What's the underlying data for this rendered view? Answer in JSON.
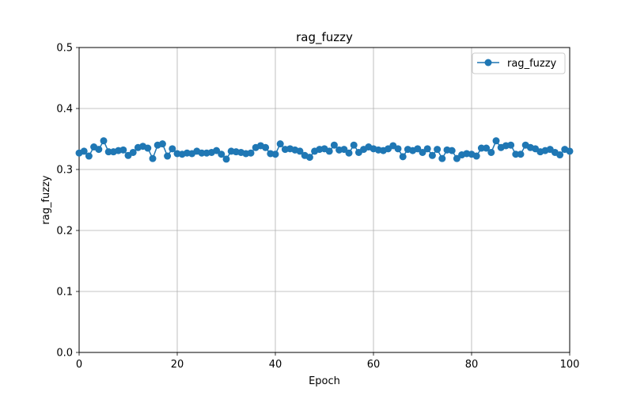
{
  "chart_data": {
    "type": "line",
    "title": "rag_fuzzy",
    "xlabel": "Epoch",
    "ylabel": "rag_fuzzy",
    "xlim": [
      0,
      100
    ],
    "ylim": [
      0,
      0.5
    ],
    "xticks": [
      "0",
      "20",
      "40",
      "60",
      "80",
      "100"
    ],
    "yticks": [
      "0.0",
      "0.1",
      "0.2",
      "0.3",
      "0.4",
      "0.5"
    ],
    "grid": true,
    "legend_position": "top-right",
    "series": [
      {
        "name": "rag_fuzzy",
        "color": "#1f77b4",
        "marker": "circle",
        "x": [
          0,
          1,
          2,
          3,
          4,
          5,
          6,
          7,
          8,
          9,
          10,
          11,
          12,
          13,
          14,
          15,
          16,
          17,
          18,
          19,
          20,
          21,
          22,
          23,
          24,
          25,
          26,
          27,
          28,
          29,
          30,
          31,
          32,
          33,
          34,
          35,
          36,
          37,
          38,
          39,
          40,
          41,
          42,
          43,
          44,
          45,
          46,
          47,
          48,
          49,
          50,
          51,
          52,
          53,
          54,
          55,
          56,
          57,
          58,
          59,
          60,
          61,
          62,
          63,
          64,
          65,
          66,
          67,
          68,
          69,
          70,
          71,
          72,
          73,
          74,
          75,
          76,
          77,
          78,
          79,
          80,
          81,
          82,
          83,
          84,
          85,
          86,
          87,
          88,
          89,
          90,
          91,
          92,
          93,
          94,
          95,
          96,
          97,
          98,
          99,
          100
        ],
        "values": [
          0.327,
          0.33,
          0.322,
          0.337,
          0.333,
          0.347,
          0.329,
          0.329,
          0.331,
          0.332,
          0.323,
          0.328,
          0.336,
          0.338,
          0.335,
          0.318,
          0.34,
          0.342,
          0.322,
          0.334,
          0.326,
          0.325,
          0.327,
          0.326,
          0.33,
          0.327,
          0.327,
          0.328,
          0.331,
          0.325,
          0.317,
          0.33,
          0.329,
          0.328,
          0.326,
          0.327,
          0.336,
          0.339,
          0.336,
          0.326,
          0.325,
          0.342,
          0.333,
          0.334,
          0.332,
          0.33,
          0.323,
          0.32,
          0.33,
          0.333,
          0.334,
          0.33,
          0.34,
          0.332,
          0.333,
          0.327,
          0.34,
          0.328,
          0.333,
          0.337,
          0.334,
          0.332,
          0.331,
          0.334,
          0.339,
          0.334,
          0.321,
          0.333,
          0.331,
          0.334,
          0.328,
          0.334,
          0.323,
          0.333,
          0.318,
          0.332,
          0.331,
          0.318,
          0.324,
          0.326,
          0.325,
          0.322,
          0.335,
          0.335,
          0.328,
          0.347,
          0.336,
          0.339,
          0.34,
          0.325,
          0.325,
          0.34,
          0.336,
          0.334,
          0.329,
          0.331,
          0.333,
          0.328,
          0.324,
          0.333,
          0.33
        ]
      }
    ]
  }
}
